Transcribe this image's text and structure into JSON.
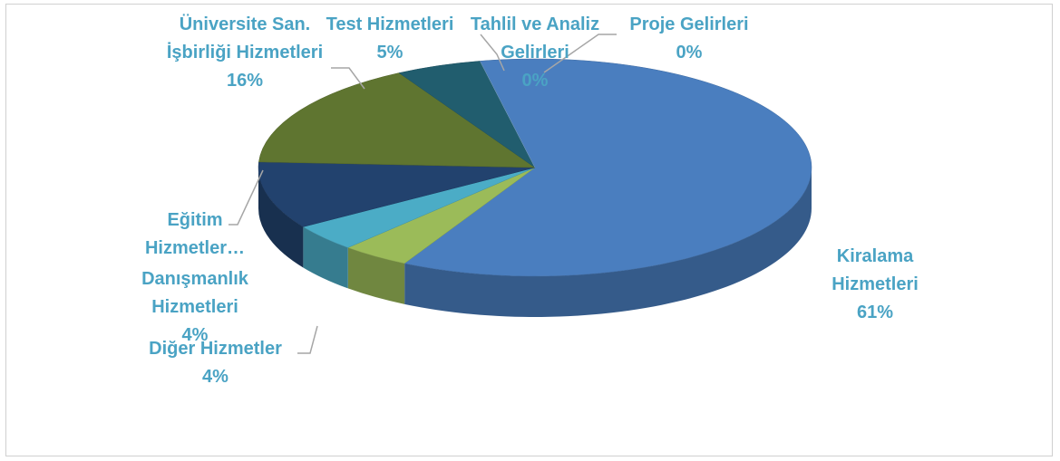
{
  "chart_data": {
    "type": "pie3d",
    "categories": [
      "Kiralama Hizmetleri",
      "Diğer Hizmetler",
      "Danışmanlık Hizmetleri",
      "Eğitim Hizmetler…",
      "Üniversite San. İşbirliği Hizmetleri",
      "Test Hizmetleri",
      "Tahlil ve Analiz Gelirleri",
      "Proje Gelirleri"
    ],
    "values": [
      61,
      4,
      4,
      10,
      16,
      5,
      0,
      0
    ],
    "value_labels": [
      "61%",
      "4%",
      "4%",
      null,
      "16%",
      "5%",
      "0%",
      "0%"
    ],
    "colors": [
      "#4a7ebf",
      "#9bbb59",
      "#4bacc6",
      "#22426e",
      "#5f7530",
      "#215d6e",
      "#3a8fa6",
      "#8eb4e3"
    ]
  }
}
